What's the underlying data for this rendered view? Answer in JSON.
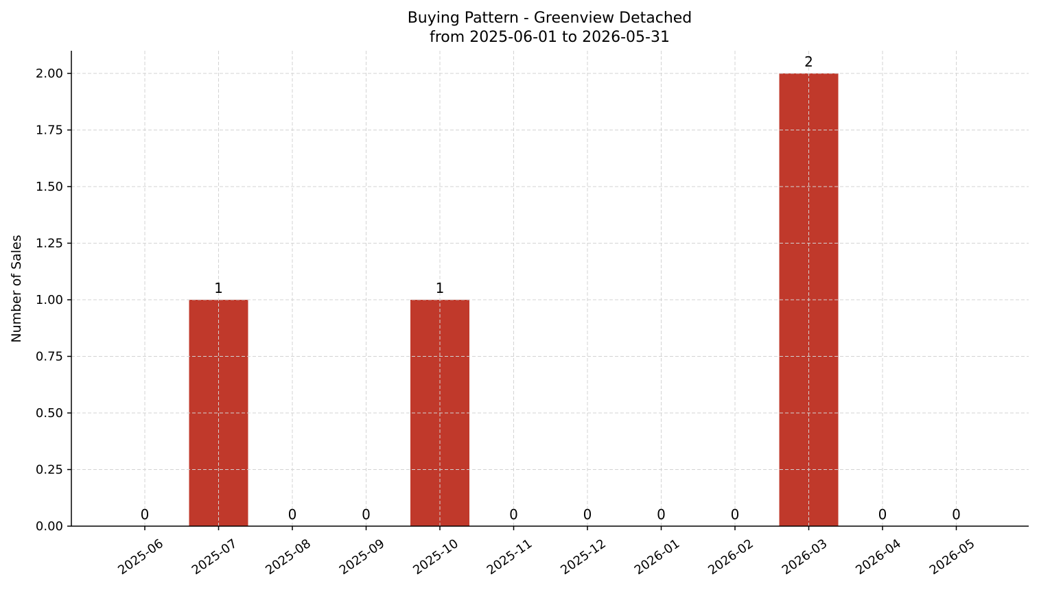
{
  "chart_data": {
    "type": "bar",
    "title": "Buying Pattern - Greenview Detached",
    "subtitle": "from 2025-06-01 to 2026-05-31",
    "xlabel": "",
    "ylabel": "Number of Sales",
    "categories": [
      "2025-06",
      "2025-07",
      "2025-08",
      "2025-09",
      "2025-10",
      "2025-11",
      "2025-12",
      "2026-01",
      "2026-02",
      "2026-03",
      "2026-04",
      "2026-05"
    ],
    "values": [
      0,
      1,
      0,
      0,
      1,
      0,
      0,
      0,
      0,
      2,
      0,
      0
    ],
    "ylim": [
      0,
      2.1
    ],
    "yticks": [
      "0.00",
      "0.25",
      "0.50",
      "0.75",
      "1.00",
      "1.25",
      "1.50",
      "1.75",
      "2.00"
    ],
    "grid": true,
    "bar_color": "#c0392b"
  }
}
